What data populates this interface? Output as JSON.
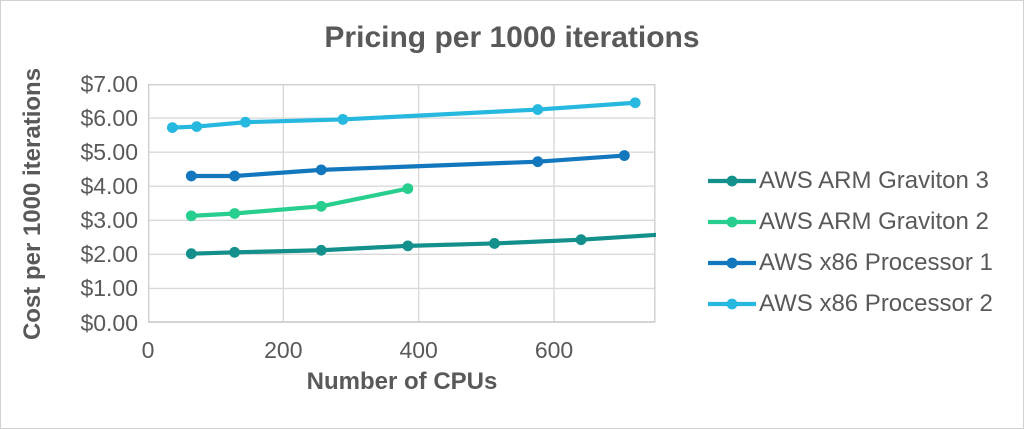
{
  "page": {
    "background": "#ffffff",
    "border_color": "#d2d2d2",
    "text_color": "#595959"
  },
  "chart_data": {
    "type": "line",
    "title": "Pricing per 1000 iterations",
    "xlabel": "Number of CPUs",
    "ylabel": "Cost per 1000 iterations",
    "xlim": [
      0,
      750
    ],
    "ylim": [
      0,
      7
    ],
    "grid": "both",
    "gridline_color": "#d9d9d9",
    "plot_border_color": "#cfcfcf",
    "legend_position": "right",
    "x_ticks": [
      {
        "value": 0,
        "label": "0"
      },
      {
        "value": 200,
        "label": "200"
      },
      {
        "value": 400,
        "label": "400"
      },
      {
        "value": 600,
        "label": "600"
      }
    ],
    "y_ticks": [
      {
        "value": 0,
        "label": "$0.00"
      },
      {
        "value": 1,
        "label": "$1.00"
      },
      {
        "value": 2,
        "label": "$2.00"
      },
      {
        "value": 3,
        "label": "$3.00"
      },
      {
        "value": 4,
        "label": "$4.00"
      },
      {
        "value": 5,
        "label": "$5.00"
      },
      {
        "value": 6,
        "label": "$6.00"
      },
      {
        "value": 7,
        "label": "$7.00"
      }
    ],
    "series": [
      {
        "name": "AWS ARM Graviton 3",
        "color": "#13908C",
        "points": [
          [
            64,
            2.02
          ],
          [
            128,
            2.06
          ],
          [
            256,
            2.12
          ],
          [
            384,
            2.25
          ],
          [
            512,
            2.32
          ],
          [
            640,
            2.43
          ]
        ],
        "line_extends_to_plot_edge": [
          750,
          2.57
        ]
      },
      {
        "name": "AWS ARM Graviton 2",
        "color": "#28CE8E",
        "points": [
          [
            64,
            3.13
          ],
          [
            128,
            3.2
          ],
          [
            256,
            3.41
          ],
          [
            384,
            3.93
          ]
        ]
      },
      {
        "name": "AWS x86 Processor 1",
        "color": "#1277BD",
        "points": [
          [
            64,
            4.3
          ],
          [
            128,
            4.3
          ],
          [
            256,
            4.48
          ],
          [
            576,
            4.72
          ],
          [
            704,
            4.9
          ]
        ]
      },
      {
        "name": "AWS x86 Processor 2",
        "color": "#27B8DF",
        "points": [
          [
            36,
            5.72
          ],
          [
            72,
            5.75
          ],
          [
            144,
            5.88
          ],
          [
            288,
            5.96
          ],
          [
            576,
            6.25
          ],
          [
            720,
            6.45
          ]
        ]
      }
    ]
  }
}
